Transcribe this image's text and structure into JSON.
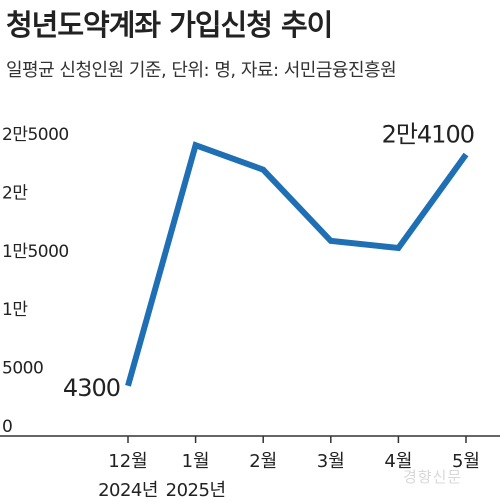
{
  "chart_data": {
    "type": "line",
    "title": "청년도약계좌 가입신청 추이",
    "subtitle": "일평균 신청인원 기준, 단위: 명, 자료: 서민금융진흥원",
    "categories": [
      "12월",
      "1월",
      "2월",
      "3월",
      "4월",
      "5월"
    ],
    "year_labels": [
      {
        "text": "2024년",
        "category_index": 0
      },
      {
        "text": "2025년",
        "category_index": 1
      }
    ],
    "series": [
      {
        "values": [
          4300,
          24900,
          22800,
          16700,
          16100,
          24100
        ]
      }
    ],
    "ylim": [
      0,
      25000
    ],
    "yticks": [
      {
        "value": 0,
        "label": "0"
      },
      {
        "value": 5000,
        "label": "5000"
      },
      {
        "value": 10000,
        "label": "1만"
      },
      {
        "value": 15000,
        "label": "1만5000"
      },
      {
        "value": 20000,
        "label": "2만"
      },
      {
        "value": 25000,
        "label": "2만5000"
      }
    ],
    "data_labels": [
      {
        "index": 0,
        "text": "4300"
      },
      {
        "index": 5,
        "text": "2만4100"
      }
    ],
    "grid": false,
    "line_color": "#1f6fb5"
  },
  "watermark": "경향신문"
}
